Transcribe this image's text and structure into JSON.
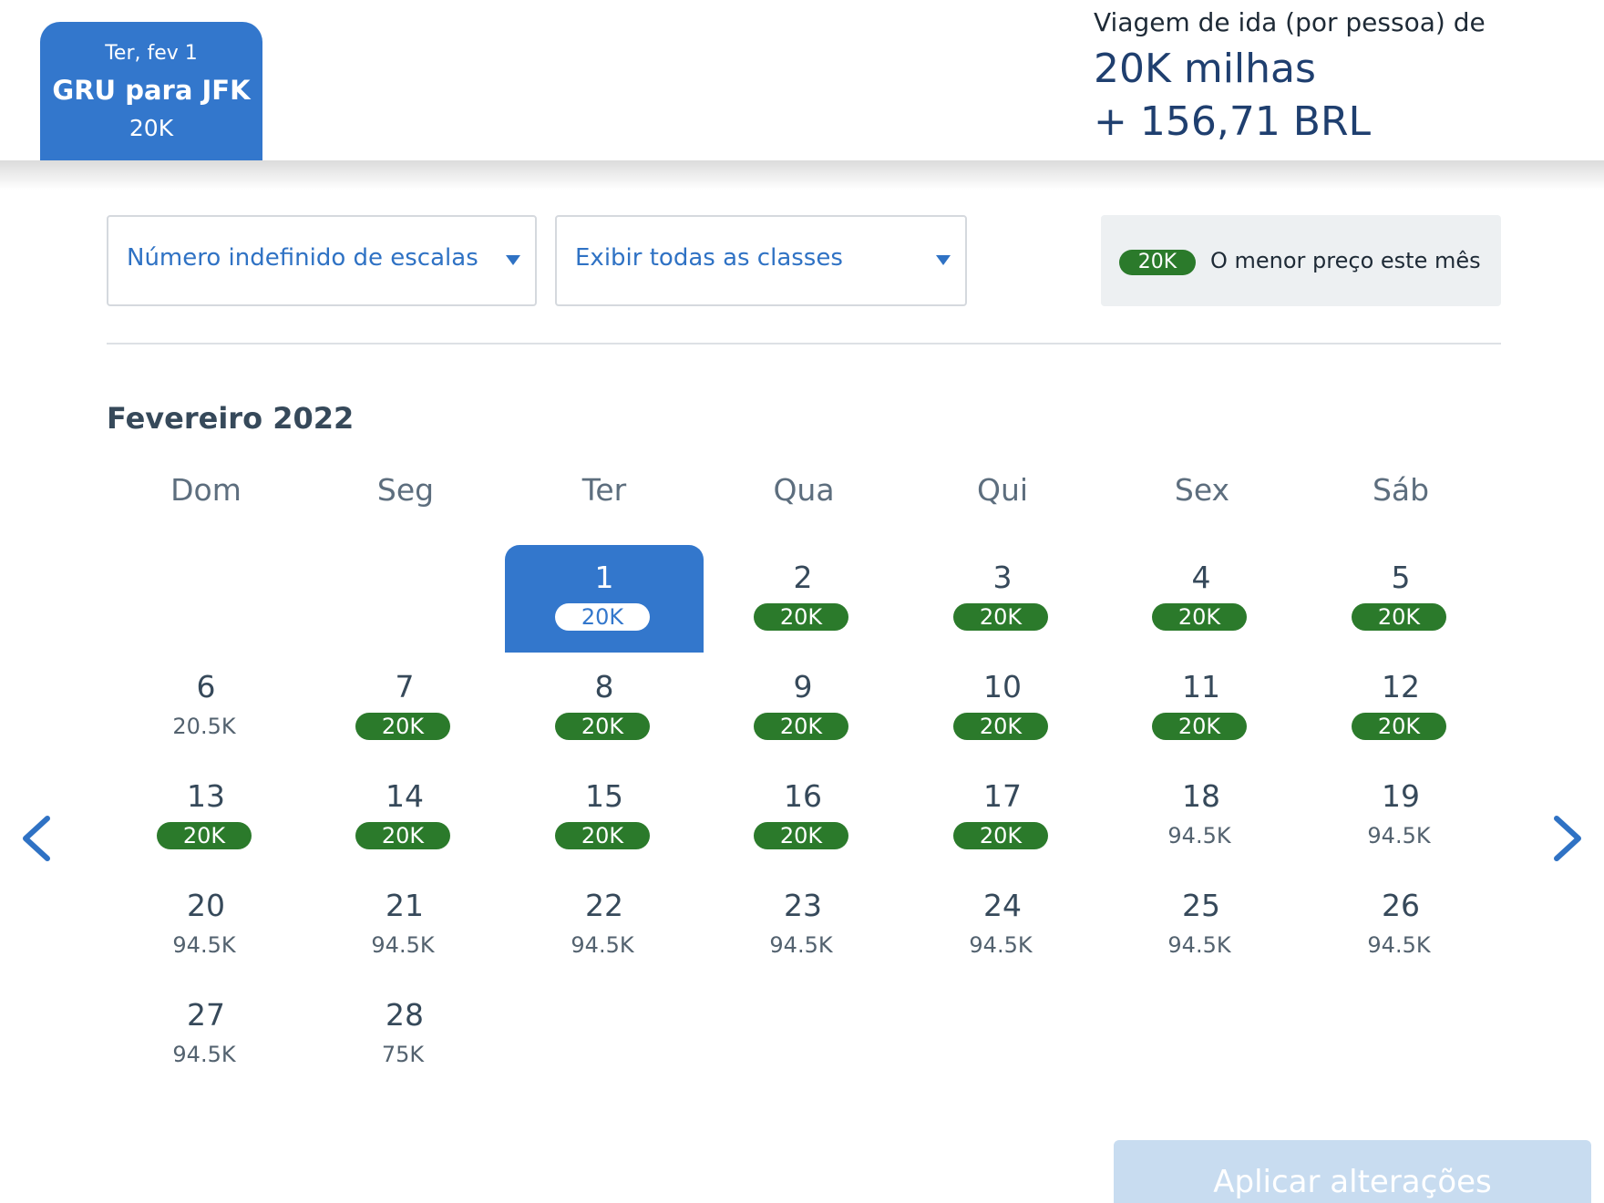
{
  "header": {
    "tab": {
      "date": "Ter, fev 1",
      "route": "GRU para JFK",
      "price": "20K"
    },
    "trip": {
      "label": "Viagem de ida (por pessoa) de",
      "miles": "20K milhas",
      "brl": "+ 156,71 BRL"
    }
  },
  "filters": {
    "stops": {
      "label": "Número indefinido de escalas"
    },
    "classes": {
      "label": "Exibir todas as classes"
    },
    "legend": {
      "pill": "20K",
      "text": "O menor preço este mês"
    }
  },
  "calendar": {
    "month": "Fevereiro 2022",
    "weekdays": [
      "Dom",
      "Seg",
      "Ter",
      "Qua",
      "Qui",
      "Sex",
      "Sáb"
    ],
    "first_weekday_index": 2,
    "selected_day": 1,
    "days": [
      {
        "day": "1",
        "price": "20K",
        "lowest": true
      },
      {
        "day": "2",
        "price": "20K",
        "lowest": true
      },
      {
        "day": "3",
        "price": "20K",
        "lowest": true
      },
      {
        "day": "4",
        "price": "20K",
        "lowest": true
      },
      {
        "day": "5",
        "price": "20K",
        "lowest": true
      },
      {
        "day": "6",
        "price": "20.5K",
        "lowest": false
      },
      {
        "day": "7",
        "price": "20K",
        "lowest": true
      },
      {
        "day": "8",
        "price": "20K",
        "lowest": true
      },
      {
        "day": "9",
        "price": "20K",
        "lowest": true
      },
      {
        "day": "10",
        "price": "20K",
        "lowest": true
      },
      {
        "day": "11",
        "price": "20K",
        "lowest": true
      },
      {
        "day": "12",
        "price": "20K",
        "lowest": true
      },
      {
        "day": "13",
        "price": "20K",
        "lowest": true
      },
      {
        "day": "14",
        "price": "20K",
        "lowest": true
      },
      {
        "day": "15",
        "price": "20K",
        "lowest": true
      },
      {
        "day": "16",
        "price": "20K",
        "lowest": true
      },
      {
        "day": "17",
        "price": "20K",
        "lowest": true
      },
      {
        "day": "18",
        "price": "94.5K",
        "lowest": false
      },
      {
        "day": "19",
        "price": "94.5K",
        "lowest": false
      },
      {
        "day": "20",
        "price": "94.5K",
        "lowest": false
      },
      {
        "day": "21",
        "price": "94.5K",
        "lowest": false
      },
      {
        "day": "22",
        "price": "94.5K",
        "lowest": false
      },
      {
        "day": "23",
        "price": "94.5K",
        "lowest": false
      },
      {
        "day": "24",
        "price": "94.5K",
        "lowest": false
      },
      {
        "day": "25",
        "price": "94.5K",
        "lowest": false
      },
      {
        "day": "26",
        "price": "94.5K",
        "lowest": false
      },
      {
        "day": "27",
        "price": "94.5K",
        "lowest": false
      },
      {
        "day": "28",
        "price": "75K",
        "lowest": false
      }
    ]
  },
  "actions": {
    "apply": "Aplicar alterações"
  },
  "icons": {
    "prev": "chevron-left-icon",
    "next": "chevron-right-icon",
    "dropdown": "caret-down-icon"
  },
  "colors": {
    "accent": "#3377cc",
    "lowest_price": "#2b7a2b",
    "text": "#36495a",
    "apply_disabled": "#c8dcf0"
  }
}
